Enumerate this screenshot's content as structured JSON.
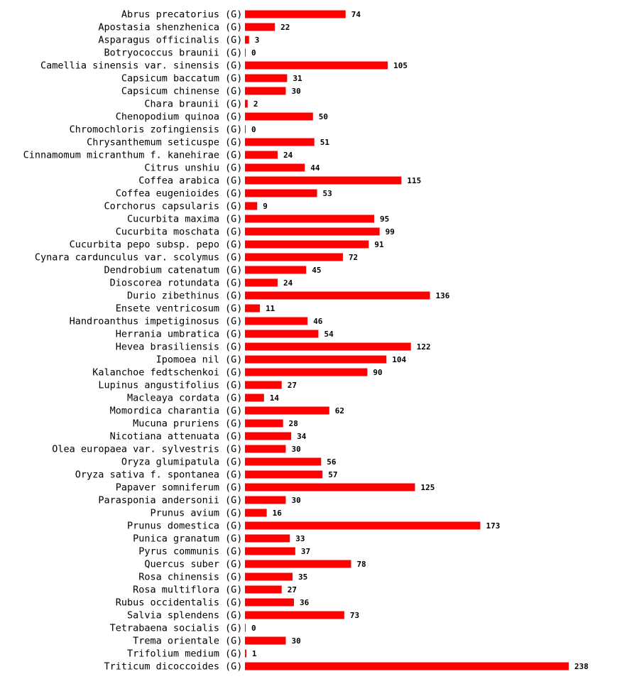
{
  "chart_data": {
    "type": "bar",
    "orientation": "horizontal",
    "category_suffix": "(G)",
    "bar_color": "#ff0000",
    "categories": [
      "Abrus precatorius",
      "Apostasia shenzhenica",
      "Asparagus officinalis",
      "Botryococcus braunii",
      "Camellia sinensis var. sinensis",
      "Capsicum baccatum",
      "Capsicum chinense",
      "Chara braunii",
      "Chenopodium quinoa",
      "Chromochloris zofingiensis",
      "Chrysanthemum seticuspe",
      "Cinnamomum micranthum f. kanehirae",
      "Citrus unshiu",
      "Coffea arabica",
      "Coffea eugenioides",
      "Corchorus capsularis",
      "Cucurbita maxima",
      "Cucurbita moschata",
      "Cucurbita pepo subsp. pepo",
      "Cynara cardunculus var. scolymus",
      "Dendrobium catenatum",
      "Dioscorea rotundata",
      "Durio zibethinus",
      "Ensete ventricosum",
      "Handroanthus impetiginosus",
      "Herrania umbratica",
      "Hevea brasiliensis",
      "Ipomoea nil",
      "Kalanchoe fedtschenkoi",
      "Lupinus angustifolius",
      "Macleaya cordata",
      "Momordica charantia",
      "Mucuna pruriens",
      "Nicotiana attenuata",
      "Olea europaea var. sylvestris",
      "Oryza glumipatula",
      "Oryza sativa f. spontanea",
      "Papaver somniferum",
      "Parasponia andersonii",
      "Prunus avium",
      "Prunus domestica",
      "Punica granatum",
      "Pyrus communis",
      "Quercus suber",
      "Rosa chinensis",
      "Rosa multiflora",
      "Rubus occidentalis",
      "Salvia splendens",
      "Tetrabaena socialis",
      "Trema orientale",
      "Trifolium medium",
      "Triticum dicoccoides"
    ],
    "values": [
      74,
      22,
      3,
      0,
      105,
      31,
      30,
      2,
      50,
      0,
      51,
      24,
      44,
      115,
      53,
      9,
      95,
      99,
      91,
      72,
      45,
      24,
      136,
      11,
      46,
      54,
      122,
      104,
      90,
      27,
      14,
      62,
      28,
      34,
      30,
      56,
      57,
      125,
      30,
      16,
      173,
      33,
      37,
      78,
      35,
      27,
      36,
      73,
      0,
      30,
      1,
      238
    ],
    "xlim": [
      0,
      238
    ],
    "title": "",
    "xlabel": "",
    "ylabel": "",
    "grid": false,
    "legend": "none"
  }
}
